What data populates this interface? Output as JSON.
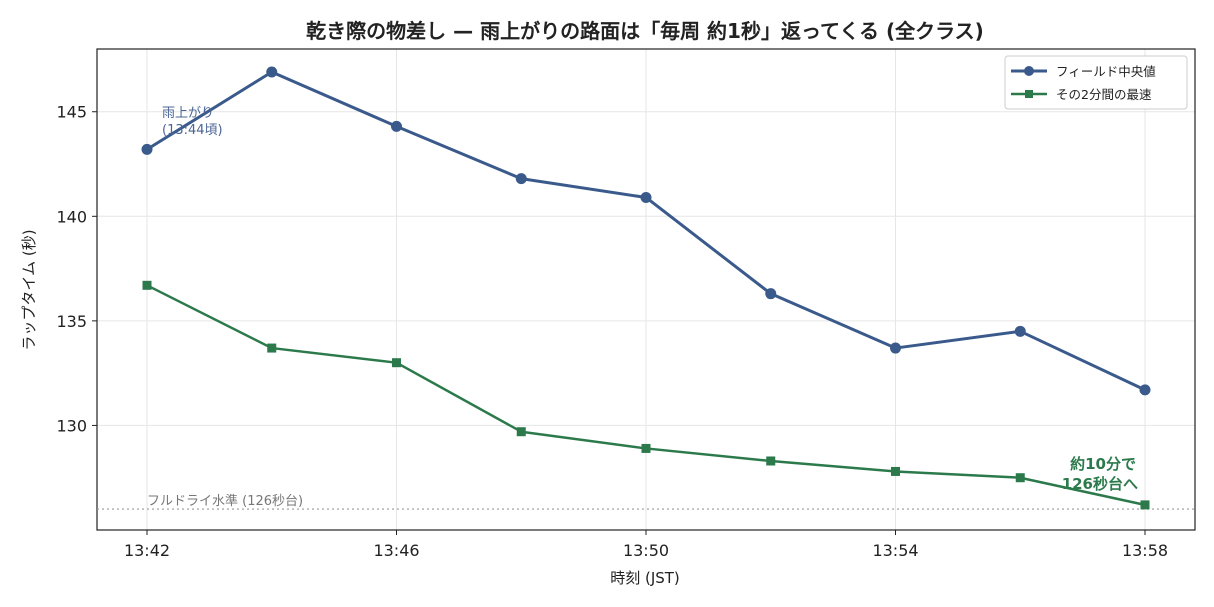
{
  "chart_data": {
    "type": "line",
    "title": "乾き際の物差し — 雨上がりの路面は「毎周 約1秒」返ってくる (全クラス)",
    "xlabel": "時刻 (JST)",
    "ylabel": "ラップタイム (秒)",
    "x": [
      "13:42",
      "13:44",
      "13:46",
      "13:48",
      "13:50",
      "13:52",
      "13:54",
      "13:56",
      "13:58"
    ],
    "x_ticks": [
      "13:42",
      "13:46",
      "13:50",
      "13:54",
      "13:58"
    ],
    "y_ticks": [
      "130",
      "135",
      "140",
      "145"
    ],
    "ylim": [
      125.0,
      148.0
    ],
    "grid": true,
    "legend_position": "top-right",
    "series": [
      {
        "name": "フィールド中央値",
        "color": "#3b5a8c",
        "marker": "circle",
        "values": [
          143.2,
          146.9,
          144.3,
          141.8,
          140.9,
          136.3,
          133.7,
          134.5,
          131.7
        ]
      },
      {
        "name": "その2分間の最速",
        "color": "#2c7a4b",
        "marker": "square",
        "values": [
          136.7,
          133.7,
          133.0,
          129.7,
          128.9,
          128.3,
          127.8,
          127.5,
          126.2
        ]
      }
    ],
    "reference_line": {
      "value": 126.0,
      "label": "フルドライ水準 (126秒台)",
      "color": "#999999"
    },
    "annotations": {
      "rain_stop": {
        "line1": "雨上がり",
        "line2": "(13:44頃)"
      },
      "end_note": {
        "line1": "約10分で",
        "line2": "126秒台へ"
      }
    }
  }
}
